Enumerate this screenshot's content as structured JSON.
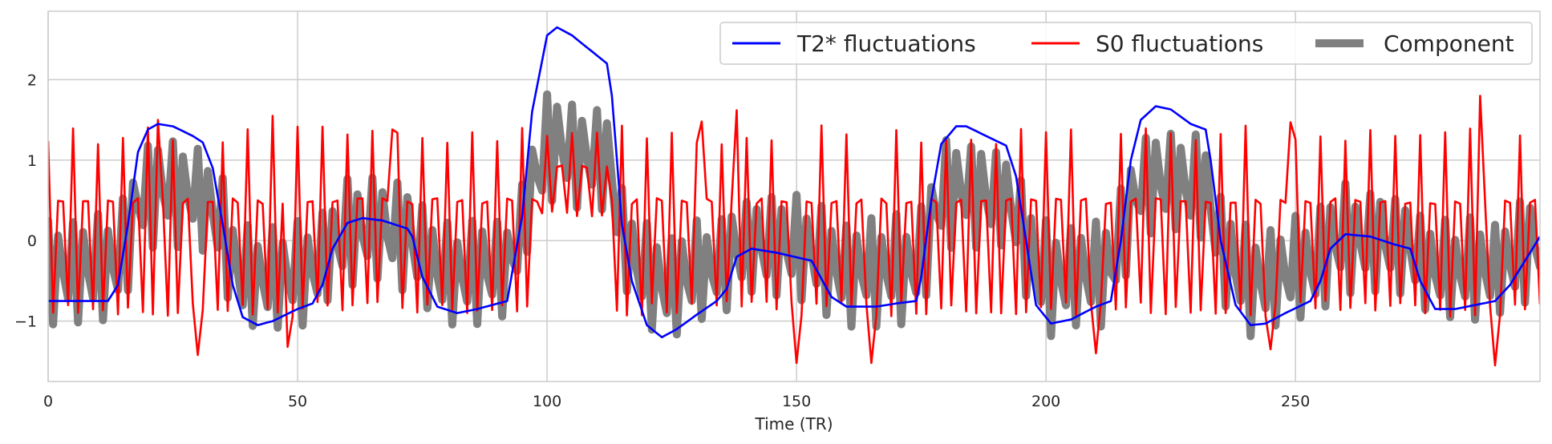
{
  "chart_data": {
    "type": "line",
    "title": "",
    "xlabel": "Time (TR)",
    "ylabel": "",
    "xlim": [
      0,
      299
    ],
    "ylim": [
      -1.75,
      2.85
    ],
    "xticks": [
      0,
      50,
      100,
      150,
      200,
      250
    ],
    "yticks": [
      -1,
      0,
      1,
      2
    ],
    "ytick_labels": [
      "−1",
      "0",
      "1",
      "2"
    ],
    "grid": true,
    "legend_position": "top-right",
    "series": [
      {
        "name": "T2* fluctuations",
        "color": "#0000ff",
        "keypoints": [
          [
            0,
            -0.75
          ],
          [
            12,
            -0.75
          ],
          [
            14,
            -0.55
          ],
          [
            16,
            0.2
          ],
          [
            18,
            1.1
          ],
          [
            20,
            1.38
          ],
          [
            22,
            1.45
          ],
          [
            25,
            1.42
          ],
          [
            29,
            1.3
          ],
          [
            31,
            1.22
          ],
          [
            33,
            0.9
          ],
          [
            35,
            0.2
          ],
          [
            37,
            -0.55
          ],
          [
            39,
            -0.95
          ],
          [
            42,
            -1.05
          ],
          [
            45,
            -1.0
          ],
          [
            50,
            -0.85
          ],
          [
            53,
            -0.78
          ],
          [
            55,
            -0.55
          ],
          [
            57,
            -0.1
          ],
          [
            60,
            0.22
          ],
          [
            63,
            0.28
          ],
          [
            67,
            0.25
          ],
          [
            72,
            0.15
          ],
          [
            73,
            0.05
          ],
          [
            75,
            -0.45
          ],
          [
            78,
            -0.82
          ],
          [
            82,
            -0.9
          ],
          [
            86,
            -0.85
          ],
          [
            92,
            -0.75
          ],
          [
            95,
            0.3
          ],
          [
            97,
            1.6
          ],
          [
            100,
            2.55
          ],
          [
            102,
            2.65
          ],
          [
            105,
            2.55
          ],
          [
            110,
            2.3
          ],
          [
            112,
            2.2
          ],
          [
            113,
            1.8
          ],
          [
            115,
            0.2
          ],
          [
            117,
            -0.5
          ],
          [
            120,
            -1.05
          ],
          [
            123,
            -1.2
          ],
          [
            126,
            -1.1
          ],
          [
            130,
            -0.92
          ],
          [
            134,
            -0.75
          ],
          [
            136,
            -0.6
          ],
          [
            138,
            -0.2
          ],
          [
            141,
            -0.1
          ],
          [
            146,
            -0.15
          ],
          [
            153,
            -0.25
          ],
          [
            157,
            -0.7
          ],
          [
            160,
            -0.82
          ],
          [
            166,
            -0.82
          ],
          [
            170,
            -0.78
          ],
          [
            174,
            -0.75
          ],
          [
            175,
            -0.45
          ],
          [
            177,
            0.5
          ],
          [
            179,
            1.2
          ],
          [
            182,
            1.42
          ],
          [
            184,
            1.42
          ],
          [
            188,
            1.3
          ],
          [
            192,
            1.18
          ],
          [
            194,
            0.8
          ],
          [
            196,
            0.0
          ],
          [
            198,
            -0.8
          ],
          [
            201,
            -1.03
          ],
          [
            205,
            -0.98
          ],
          [
            210,
            -0.82
          ],
          [
            213,
            -0.75
          ],
          [
            215,
            0.0
          ],
          [
            217,
            1.0
          ],
          [
            219,
            1.5
          ],
          [
            222,
            1.67
          ],
          [
            225,
            1.63
          ],
          [
            229,
            1.45
          ],
          [
            232,
            1.38
          ],
          [
            233,
            1.0
          ],
          [
            235,
            0.0
          ],
          [
            238,
            -0.8
          ],
          [
            241,
            -1.05
          ],
          [
            244,
            -1.03
          ],
          [
            248,
            -0.9
          ],
          [
            253,
            -0.75
          ],
          [
            255,
            -0.5
          ],
          [
            257,
            -0.1
          ],
          [
            260,
            0.08
          ],
          [
            265,
            0.05
          ],
          [
            270,
            -0.05
          ],
          [
            273,
            -0.1
          ],
          [
            275,
            -0.5
          ],
          [
            278,
            -0.85
          ],
          [
            282,
            -0.85
          ],
          [
            290,
            -0.75
          ],
          [
            293,
            -0.55
          ],
          [
            296,
            -0.25
          ],
          [
            299,
            0.05
          ]
        ]
      },
      {
        "name": "S0 fluctuations",
        "color": "#ff0000",
        "amplitude": 1.22,
        "period_tr": 2.5,
        "peaks": [
          [
            22,
            1.5
          ],
          [
            45,
            1.55
          ],
          [
            69,
            1.38
          ],
          [
            131,
            1.48
          ],
          [
            138,
            1.62
          ],
          [
            165,
            1.6
          ],
          [
            205,
            1.38
          ],
          [
            249,
            1.47
          ],
          [
            287,
            1.8
          ]
        ],
        "troughs": [
          [
            30,
            -1.42
          ],
          [
            48,
            -1.32
          ],
          [
            150,
            -1.52
          ],
          [
            165,
            -1.52
          ],
          [
            210,
            -1.4
          ],
          [
            245,
            -1.35
          ],
          [
            290,
            -1.55
          ]
        ]
      },
      {
        "name": "Component",
        "color": "#808080",
        "amplitude": 0.68,
        "period_tr": 2.5
      }
    ]
  }
}
